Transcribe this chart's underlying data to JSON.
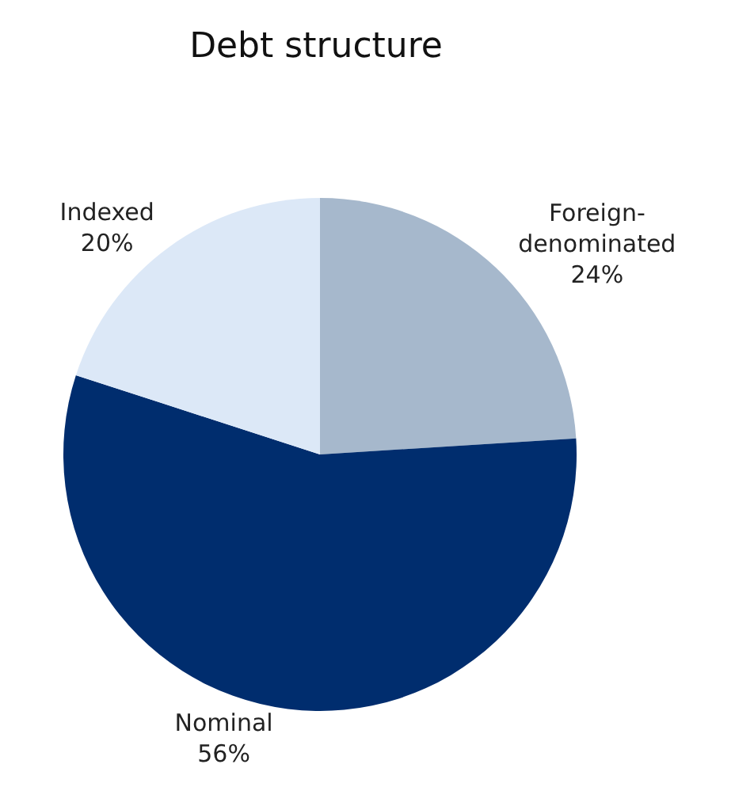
{
  "chart_data": {
    "type": "pie",
    "title": "Debt structure",
    "categories": [
      "Foreign-denominated",
      "Nominal",
      "Indexed"
    ],
    "values": [
      24,
      56,
      20
    ],
    "value_labels": [
      "24%",
      "56%",
      "20%"
    ],
    "colors": [
      "#a6b8cc",
      "#002d6e",
      "#dce8f7"
    ],
    "legend": false
  }
}
